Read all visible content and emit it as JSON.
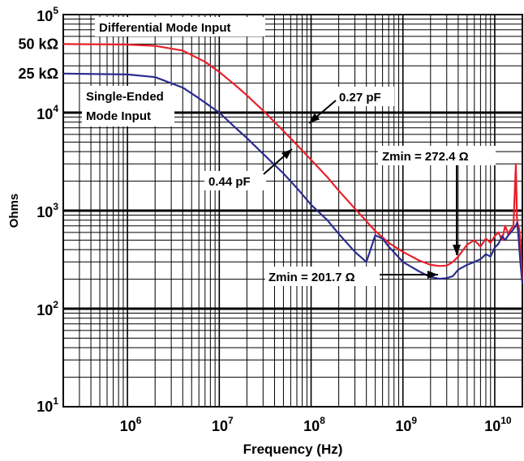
{
  "chart_data": {
    "type": "line",
    "xlabel": "Frequency (Hz)",
    "ylabel": "Ohms",
    "x_scale": "log",
    "y_scale": "log",
    "xlim": [
      200000,
      20000000000
    ],
    "ylim": [
      10,
      100000
    ],
    "x_ticks": [
      {
        "value": 1000000,
        "base": "10",
        "exp": "6"
      },
      {
        "value": 10000000,
        "base": "10",
        "exp": "7"
      },
      {
        "value": 100000000,
        "base": "10",
        "exp": "8"
      },
      {
        "value": 1000000000,
        "base": "10",
        "exp": "9"
      },
      {
        "value": 10000000000,
        "base": "10",
        "exp": "10"
      }
    ],
    "y_ticks": [
      {
        "value": 10,
        "base": "10",
        "exp": "1"
      },
      {
        "value": 100,
        "base": "10",
        "exp": "2"
      },
      {
        "value": 1000,
        "base": "10",
        "exp": "3"
      },
      {
        "value": 10000,
        "base": "10",
        "exp": "4"
      },
      {
        "value": 100000,
        "base": "10",
        "exp": "5"
      }
    ],
    "y_extra_ticks": [
      {
        "value": 50000,
        "label": "50 kΩ"
      },
      {
        "value": 25000,
        "label": "25 kΩ"
      }
    ],
    "grid": true,
    "series": [
      {
        "name": "Differential Mode Input",
        "color": "#e8202a",
        "x": [
          200000,
          1000000,
          2000000,
          4000000,
          7000000,
          10000000,
          15000000,
          20000000,
          30000000,
          50000000,
          70000000,
          100000000,
          150000000,
          200000000,
          300000000,
          500000000,
          700000000,
          1000000000,
          1500000000,
          2000000000,
          2500000000,
          3000000000,
          3500000000,
          4000000000,
          5000000000,
          6000000000,
          7000000000,
          8000000000,
          9000000000,
          10000000000,
          11000000000,
          12000000000,
          13000000000,
          14000000000,
          15000000000,
          16000000000,
          17000000000,
          17500000000,
          18000000000,
          18500000000,
          19000000000,
          20000000000
        ],
        "y": [
          50000,
          49500,
          48000,
          43000,
          33000,
          26000,
          19000,
          15000,
          10500,
          6500,
          4700,
          3300,
          2200,
          1600,
          1050,
          620,
          470,
          380,
          310,
          280,
          272.4,
          275,
          300,
          340,
          450,
          500,
          430,
          520,
          470,
          550,
          600,
          500,
          700,
          580,
          650,
          700,
          3000,
          800,
          700,
          650,
          500,
          200
        ]
      },
      {
        "name": "Single-Ended Mode Input",
        "color": "#2b2c8f",
        "x": [
          200000,
          1000000,
          2000000,
          4000000,
          6000000,
          10000000,
          15000000,
          20000000,
          30000000,
          50000000,
          70000000,
          100000000,
          150000000,
          200000000,
          300000000,
          400000000,
          500000000,
          600000000,
          700000000,
          1000000000,
          1500000000,
          2000000000,
          2500000000,
          3000000000,
          3500000000,
          4000000000,
          5000000000,
          6000000000,
          7000000000,
          8000000000,
          9000000000,
          10000000000,
          11000000000,
          12000000000,
          13000000000,
          14000000000,
          15000000000,
          16000000000,
          17000000000,
          17500000000,
          18000000000,
          19000000000,
          20000000000
        ],
        "y": [
          25000,
          24500,
          23000,
          18000,
          14000,
          10000,
          7000,
          5500,
          3800,
          2400,
          1700,
          1150,
          800,
          580,
          380,
          300,
          560,
          520,
          430,
          300,
          240,
          210,
          201.7,
          205,
          215,
          250,
          280,
          300,
          320,
          360,
          340,
          420,
          460,
          550,
          500,
          560,
          600,
          650,
          700,
          750,
          600,
          300,
          180
        ]
      }
    ],
    "annotations": [
      {
        "text": "Differential Mode Input",
        "line1": "Differential Mode Input"
      },
      {
        "text": "Single-Ended Mode Input",
        "line1": "Single-Ended",
        "line2": "Mode Input"
      },
      {
        "text": "0.27 pF",
        "line1": "0.27 pF"
      },
      {
        "text": "0.44 pF",
        "line1": "0.44 pF"
      },
      {
        "text": "Zmin = 272.4 Ω",
        "line1": "Zmin = 272.4 Ω"
      },
      {
        "text": "Zmin = 201.7 Ω",
        "line1": "Zmin = 201.7 Ω"
      }
    ]
  }
}
